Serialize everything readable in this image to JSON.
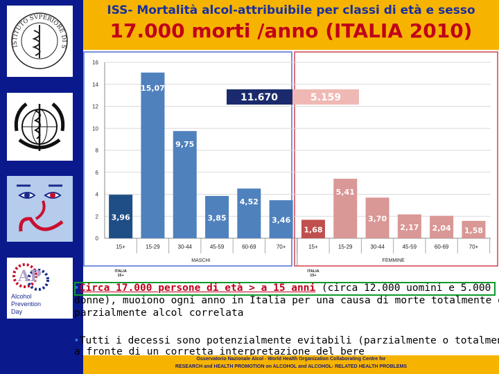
{
  "header": {
    "title": "ISS- Mortalità alcol-attribuibile per classi di età e sesso",
    "subtitle": "17.000 morti /anno (ITALIA 2010)"
  },
  "sidebar": {
    "logos": [
      "istituto-superiore-di-sanita-logo",
      "who-logo",
      "face-logo",
      "alcohol-prevention-day-logo"
    ],
    "iss_seal_text": "ISTITUTO SVPERIORE DI SANITÀ",
    "apd_text": [
      "Alcohol",
      "Prevention",
      "Day"
    ]
  },
  "chart_data": {
    "type": "bar",
    "ylim": [
      0,
      16
    ],
    "yticks": [
      0,
      2,
      4,
      6,
      8,
      10,
      12,
      14,
      16
    ],
    "groups": [
      {
        "name": "MASCHI",
        "total": "11.670",
        "categories": [
          "15+",
          "15-29",
          "30-44",
          "45-59",
          "60-69",
          "70+"
        ],
        "values": [
          3.96,
          15.07,
          9.75,
          3.85,
          4.52,
          3.46
        ],
        "labels": [
          "3,96",
          "15,07",
          "9,75",
          "3,85",
          "4,52",
          "3,46"
        ],
        "colors": [
          "#1f4e86",
          "#4f81bd",
          "#4f81bd",
          "#4f81bd",
          "#4f81bd",
          "#4f81bd"
        ]
      },
      {
        "name": "FEMMINE",
        "total": "5.159",
        "categories": [
          "15+",
          "15-29",
          "30-44",
          "45-59",
          "60-69",
          "70+"
        ],
        "values": [
          1.68,
          5.41,
          3.7,
          2.17,
          2.04,
          1.58
        ],
        "labels": [
          "1,68",
          "5,41",
          "3,70",
          "2,17",
          "2,04",
          "1,58"
        ],
        "colors": [
          "#c0504d",
          "#d99795",
          "#d99795",
          "#d99795",
          "#d99795",
          "#d99795"
        ]
      }
    ],
    "sublabels": [
      "ITALIA",
      "15+"
    ],
    "colors": {
      "male_total_bg": "#1a2a6c",
      "female_total_bg": "#f0b8b4"
    }
  },
  "body": {
    "para1_highlight": "Circa 17.000 persone di età > a 15 anni",
    "para1_lines": [
      " (circa 12.000 uomini e 5.000",
      "donne), muoiono ogni anno in Italia per una causa di morte totalmente o",
      "parzialmente alcol correlata"
    ],
    "para2_lines": [
      "Tutti i decessi sono potenzialmente evitabili (parzialmente o totalmente)",
      "a fronte di un corretta interpretazione del bere"
    ]
  },
  "footer": {
    "line1": "Osservatorio Nazionale Alcol - World Health Organization Collaborating Centre for",
    "line2": "RESEARCH and HEALTH PROMOTION on ALCOHOL and ALCOHOL- RELATED HEALTH PROBLEMS"
  }
}
